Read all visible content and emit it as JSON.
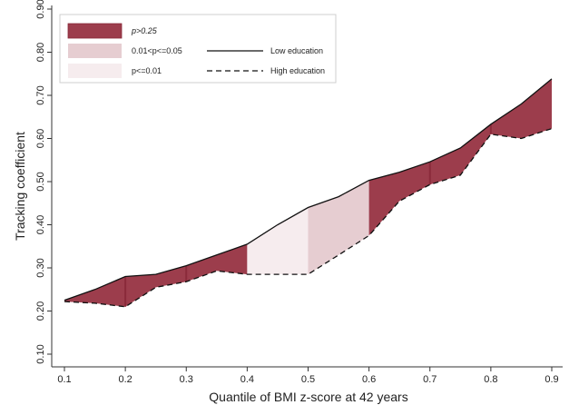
{
  "chart_data": {
    "type": "line",
    "xlabel": "Quantile of BMI z-score at 42 years",
    "ylabel": "Tracking coefficient",
    "xlim": [
      0.1,
      0.9
    ],
    "ylim": [
      0.1,
      0.9
    ],
    "xticks": [
      "0.1",
      "0.2",
      "0.3",
      "0.4",
      "0.5",
      "0.6",
      "0.7",
      "0.8",
      "0.9"
    ],
    "yticks": [
      "0.10",
      "0.20",
      "0.30",
      "0.40",
      "0.50",
      "0.60",
      "0.70",
      "0.80",
      "0.90"
    ],
    "x": [
      0.1,
      0.15,
      0.2,
      0.25,
      0.3,
      0.35,
      0.4,
      0.45,
      0.5,
      0.55,
      0.6,
      0.65,
      0.7,
      0.75,
      0.8,
      0.85,
      0.9
    ],
    "series": [
      {
        "name": "Low education",
        "style": "solid",
        "values": [
          0.225,
          0.25,
          0.28,
          0.285,
          0.305,
          0.33,
          0.355,
          0.4,
          0.44,
          0.465,
          0.503,
          0.522,
          0.546,
          0.578,
          0.633,
          0.68,
          0.738
        ]
      },
      {
        "name": "High education",
        "style": "dashed",
        "values": [
          0.222,
          0.218,
          0.21,
          0.255,
          0.268,
          0.293,
          0.285,
          0.285,
          0.285,
          0.33,
          0.375,
          0.455,
          0.493,
          0.515,
          0.61,
          0.6,
          0.623
        ]
      }
    ],
    "shading": [
      {
        "from": 0.1,
        "to": 0.4,
        "level": 0
      },
      {
        "from": 0.4,
        "to": 0.5,
        "level": 2
      },
      {
        "from": 0.5,
        "to": 0.6,
        "level": 1
      },
      {
        "from": 0.6,
        "to": 0.9,
        "level": 0
      }
    ],
    "dividers": [
      0.2,
      0.3,
      0.7,
      0.8
    ],
    "legend": {
      "placement": "top-left",
      "fill_items": [
        {
          "label": "p>0.25",
          "color": "#9c3d4c"
        },
        {
          "label": "0.01<p<=0.05",
          "color": "#e6cdd1"
        },
        {
          "label": "p<=0.01",
          "color": "#f6ecee"
        }
      ],
      "line_items": [
        {
          "label": "Low education",
          "style": "solid"
        },
        {
          "label": "High education",
          "style": "dashed"
        }
      ]
    },
    "colors": {
      "band_dark": "#9c3d4c",
      "band_mid": "#e6cdd1",
      "band_light": "#f6ecee",
      "divider": "#8a2a3a",
      "line": "#111111"
    },
    "grid": false
  }
}
